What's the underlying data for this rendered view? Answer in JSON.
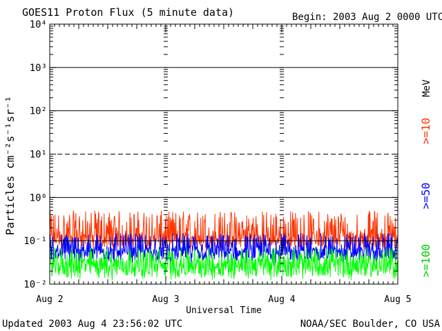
{
  "chart_data": {
    "type": "line",
    "title": "GOES11 Proton Flux (5 minute data)",
    "begin_label": "Begin: 2003 Aug 2 0000 UTC",
    "xlabel": "Universal Time",
    "ylabel": "Particles cm⁻²s⁻¹sr⁻¹",
    "y_scale": "log",
    "ylim": [
      0.01,
      10000
    ],
    "y_tick_labels": [
      "10⁻²",
      "10⁻¹",
      "10⁰",
      "10¹",
      "10²",
      "10³",
      "10⁴"
    ],
    "y_tick_exponents": [
      -2,
      -1,
      0,
      1,
      2,
      3,
      4
    ],
    "x_range_days": [
      "Aug 2",
      "Aug 5"
    ],
    "x_tick_labels": [
      "Aug 2",
      "Aug 3",
      "Aug 4",
      "Aug 5"
    ],
    "alert_thresholds": [
      {
        "value": 10,
        "style": "dashed"
      },
      {
        "value": 0.1,
        "style": "solid"
      }
    ],
    "grid": true,
    "legend_placement": "right",
    "unit_label": "MeV",
    "series": [
      {
        "name": ">=10",
        "color": "#ff3300",
        "baseline": 0.1,
        "range": [
          0.06,
          0.5
        ]
      },
      {
        "name": ">=50",
        "color": "#0000ff",
        "baseline": 0.05,
        "range": [
          0.03,
          0.15
        ]
      },
      {
        "name": ">=100",
        "color": "#00ff00",
        "baseline": 0.025,
        "range": [
          0.012,
          0.07
        ]
      }
    ]
  },
  "footer": {
    "updated": "Updated 2003 Aug  4 23:56:02 UTC",
    "source": "NOAA/SEC Boulder, CO USA"
  }
}
